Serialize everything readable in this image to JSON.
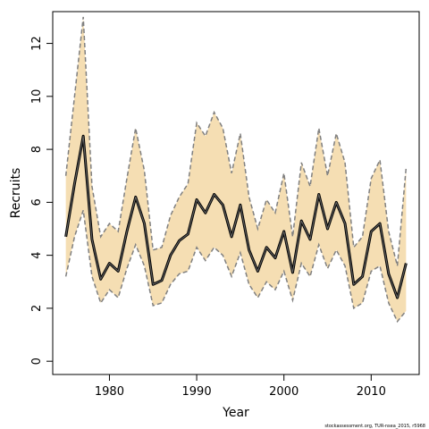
{
  "chart_data": {
    "type": "line",
    "xlabel": "Year",
    "ylabel": "Recruits",
    "xlim": [
      1973.5,
      2015.5
    ],
    "ylim": [
      -0.5,
      13.2
    ],
    "x_ticks": [
      1980,
      1990,
      2000,
      2010
    ],
    "x_tick_labels": [
      "1980",
      "1990",
      "2000",
      "2010"
    ],
    "y_ticks": [
      0,
      2,
      4,
      6,
      8,
      10,
      12
    ],
    "y_tick_labels": [
      "0",
      "2",
      "4",
      "6",
      "8",
      "10",
      "12"
    ],
    "grid": false,
    "x": [
      1975,
      1976,
      1977,
      1978,
      1979,
      1980,
      1981,
      1982,
      1983,
      1984,
      1985,
      1986,
      1987,
      1988,
      1989,
      1990,
      1991,
      1992,
      1993,
      1994,
      1995,
      1996,
      1997,
      1998,
      1999,
      2000,
      2001,
      2002,
      2003,
      2004,
      2005,
      2006,
      2007,
      2008,
      2009,
      2010,
      2011,
      2012,
      2013,
      2014
    ],
    "series": [
      {
        "role": "estimate",
        "values": [
          4.7,
          6.7,
          8.5,
          4.6,
          3.1,
          3.7,
          3.4,
          4.9,
          6.2,
          5.2,
          2.9,
          3.05,
          4.0,
          4.55,
          4.8,
          6.1,
          5.6,
          6.3,
          5.9,
          4.7,
          5.9,
          4.2,
          3.4,
          4.3,
          3.9,
          4.9,
          3.35,
          5.3,
          4.6,
          6.3,
          5.0,
          6.0,
          5.2,
          2.9,
          3.2,
          4.9,
          5.2,
          3.3,
          2.4,
          3.7
        ]
      },
      {
        "role": "upper",
        "values": [
          7.0,
          10.0,
          13.0,
          6.6,
          4.7,
          5.2,
          4.9,
          6.9,
          8.8,
          7.2,
          4.2,
          4.3,
          5.5,
          6.2,
          6.7,
          9.0,
          8.5,
          9.4,
          8.8,
          7.1,
          8.6,
          6.2,
          5.0,
          6.1,
          5.6,
          7.1,
          4.7,
          7.5,
          6.6,
          8.8,
          7.0,
          8.6,
          7.5,
          4.3,
          4.7,
          6.9,
          7.6,
          4.9,
          3.6,
          7.3
        ]
      },
      {
        "role": "lower",
        "values": [
          3.2,
          4.7,
          5.7,
          3.2,
          2.2,
          2.7,
          2.4,
          3.5,
          4.4,
          3.6,
          2.1,
          2.2,
          2.9,
          3.3,
          3.4,
          4.3,
          3.8,
          4.3,
          4.0,
          3.2,
          4.1,
          2.9,
          2.4,
          3.0,
          2.7,
          3.4,
          2.3,
          3.7,
          3.2,
          4.4,
          3.5,
          4.2,
          3.6,
          2.0,
          2.2,
          3.4,
          3.6,
          2.2,
          1.5,
          1.9
        ]
      }
    ],
    "colors": {
      "band": "#f5deb3",
      "bound_line": "#808080",
      "estimate_line": "#000000",
      "estimate_inner": "#666666"
    },
    "footnote": "stockassessment.org, TUR-nsea_2015, r5968"
  }
}
